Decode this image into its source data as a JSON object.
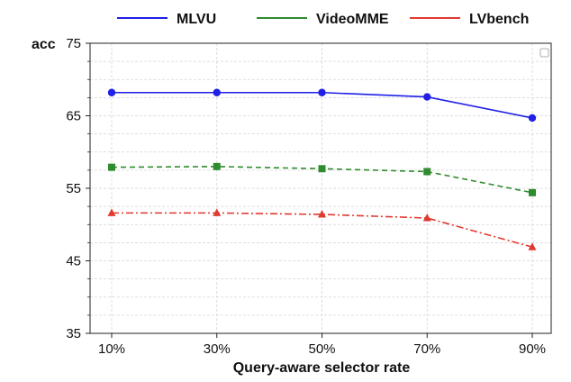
{
  "chart_data": {
    "type": "line",
    "title": "",
    "xlabel": "Query-aware selector rate",
    "ylabel": "acc",
    "categories": [
      "10%",
      "30%",
      "50%",
      "70%",
      "90%"
    ],
    "ylim": [
      35,
      75
    ],
    "yticks": [
      35,
      45,
      55,
      65,
      75
    ],
    "grid": true,
    "legend_position": "top",
    "series": [
      {
        "name": "MLVU",
        "values": [
          68.2,
          68.2,
          68.2,
          67.6,
          64.7
        ],
        "color": "#1f1fe6",
        "marker": "circle",
        "line_style": "solid"
      },
      {
        "name": "VideoMME",
        "values": [
          57.9,
          58.0,
          57.7,
          57.3,
          54.4
        ],
        "color": "#2e8b2e",
        "marker": "square",
        "line_style": "dashed"
      },
      {
        "name": "LVbench",
        "values": [
          51.6,
          51.6,
          51.4,
          50.9,
          46.9
        ],
        "color": "#e03a30",
        "marker": "triangle",
        "line_style": "dashdot"
      }
    ]
  }
}
